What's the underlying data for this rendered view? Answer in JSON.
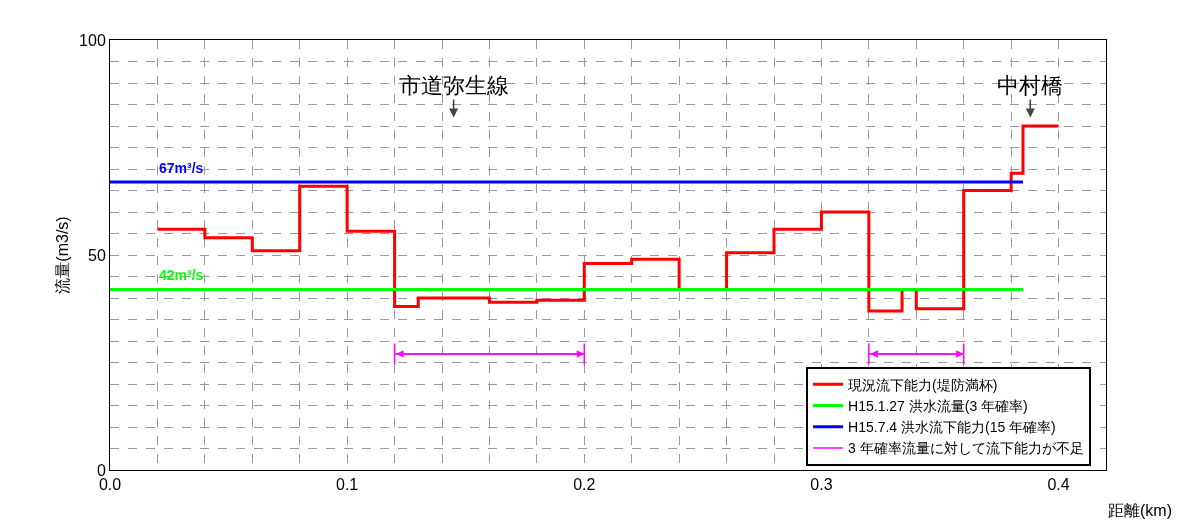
{
  "chart_data": {
    "type": "step",
    "xlabel": "距離(km)",
    "ylabel": "流量(m3/s)",
    "x": [
      0.02,
      0.04,
      0.06,
      0.08,
      0.1,
      0.12,
      0.13,
      0.16,
      0.18,
      0.2,
      0.22,
      0.24,
      0.26,
      0.28,
      0.3,
      0.32,
      0.334,
      0.34,
      0.36,
      0.38,
      0.385,
      0.4
    ],
    "series": [
      {
        "name": "現況流下能力(堤防満杯)",
        "color": "#ff0000",
        "values": [
          56,
          54,
          51,
          66,
          55.5,
          38,
          40,
          39,
          39.5,
          48,
          49,
          42,
          50.5,
          56,
          60,
          37,
          42,
          37.5,
          65,
          69,
          80,
          80
        ]
      },
      {
        "name": "H15.1.27 洪水流量(3 年確率)",
        "type": "line",
        "color": "#00ff00",
        "x": [
          0,
          0.385
        ],
        "values": [
          42,
          42
        ]
      },
      {
        "name": "H15.7.4 洪水流下能力(15 年確率)",
        "type": "line",
        "color": "#0000ff",
        "x": [
          0,
          0.385
        ],
        "values": [
          67,
          67
        ]
      },
      {
        "name": "3 年確率流量に対して流下能力が不足",
        "type": "line",
        "color": "#ff00ff",
        "x": [
          0.12,
          0.2,
          null,
          0.32,
          0.36
        ],
        "values": [
          27,
          27,
          null,
          27,
          27
        ]
      }
    ],
    "annotations": [
      {
        "text": "67m³/s",
        "x": 0.03,
        "y": 67
      },
      {
        "text": "42m³/s",
        "x": 0.03,
        "y": 42
      },
      "市道弥生線",
      "中村橋"
    ],
    "xlim": [
      0,
      0.42
    ],
    "xticks": [
      {
        "value": 0,
        "label": "0.0"
      },
      0.1,
      0.2,
      0.3,
      0.4
    ],
    "ylim": [
      0,
      100
    ],
    "yticks": [
      0,
      50,
      100
    ],
    "grid": true,
    "legend": "bottom right",
    "line_style": "solid"
  }
}
